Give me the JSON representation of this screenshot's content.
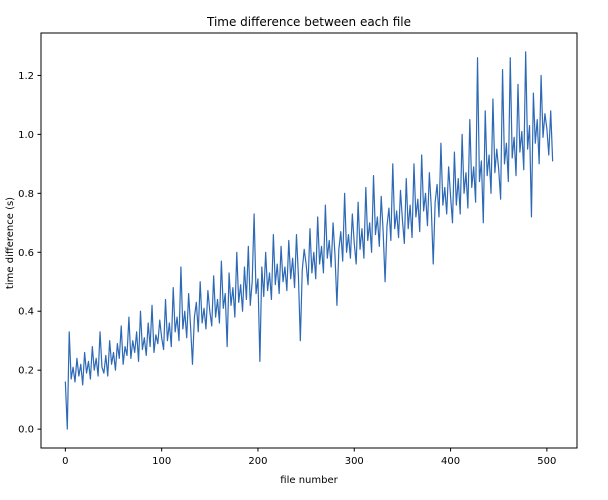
{
  "figure": {
    "background_color": "#ffffff",
    "spine_color": "#000000",
    "text_color": "#000000"
  },
  "chart_data": {
    "type": "line",
    "title": "Time difference between each file",
    "xlabel": "file number",
    "ylabel": "time difference (s)",
    "legend": "none",
    "grid": false,
    "line_color": "#2d69b5",
    "xlim": [
      -25.3,
      531.3
    ],
    "ylim": [
      -0.064,
      1.344
    ],
    "x_ticks": [
      0,
      100,
      200,
      300,
      400,
      500
    ],
    "x_tick_labels": [
      "0",
      "100",
      "200",
      "300",
      "400",
      "500"
    ],
    "y_ticks": [
      0.0,
      0.2,
      0.4,
      0.6,
      0.8,
      1.0,
      1.2
    ],
    "y_tick_labels": [
      "0.0",
      "0.2",
      "0.4",
      "0.6",
      "0.8",
      "1.0",
      "1.2"
    ],
    "x_start": 0,
    "x_step": 2,
    "series": [
      {
        "name": "time difference",
        "values": [
          0.16,
          0.0,
          0.33,
          0.17,
          0.21,
          0.16,
          0.24,
          0.18,
          0.22,
          0.15,
          0.26,
          0.19,
          0.23,
          0.17,
          0.28,
          0.2,
          0.24,
          0.18,
          0.33,
          0.21,
          0.19,
          0.25,
          0.18,
          0.3,
          0.22,
          0.26,
          0.2,
          0.29,
          0.24,
          0.35,
          0.22,
          0.28,
          0.25,
          0.38,
          0.24,
          0.3,
          0.26,
          0.33,
          0.23,
          0.4,
          0.27,
          0.31,
          0.25,
          0.36,
          0.28,
          0.42,
          0.26,
          0.32,
          0.29,
          0.37,
          0.31,
          0.27,
          0.44,
          0.3,
          0.36,
          0.28,
          0.48,
          0.33,
          0.38,
          0.3,
          0.55,
          0.34,
          0.4,
          0.31,
          0.46,
          0.35,
          0.22,
          0.38,
          0.43,
          0.33,
          0.5,
          0.36,
          0.41,
          0.34,
          0.47,
          0.4,
          0.35,
          0.52,
          0.38,
          0.44,
          0.36,
          0.57,
          0.41,
          0.46,
          0.28,
          0.53,
          0.42,
          0.48,
          0.38,
          0.6,
          0.43,
          0.49,
          0.4,
          0.55,
          0.44,
          0.62,
          0.42,
          0.5,
          0.73,
          0.46,
          0.51,
          0.23,
          0.55,
          0.45,
          0.6,
          0.47,
          0.53,
          0.44,
          0.66,
          0.49,
          0.56,
          0.46,
          0.62,
          0.5,
          0.55,
          0.47,
          0.64,
          0.51,
          0.58,
          0.48,
          0.66,
          0.52,
          0.3,
          0.54,
          0.61,
          0.56,
          0.49,
          0.68,
          0.53,
          0.6,
          0.51,
          0.72,
          0.56,
          0.62,
          0.53,
          0.76,
          0.58,
          0.64,
          0.55,
          0.7,
          0.59,
          0.42,
          0.61,
          0.67,
          0.57,
          0.8,
          0.6,
          0.66,
          0.58,
          0.73,
          0.63,
          0.56,
          0.77,
          0.61,
          0.68,
          0.58,
          0.82,
          0.64,
          0.7,
          0.6,
          0.86,
          0.66,
          0.72,
          0.62,
          0.79,
          0.67,
          0.5,
          0.69,
          0.75,
          0.64,
          0.9,
          0.68,
          0.74,
          0.65,
          0.81,
          0.71,
          0.63,
          0.85,
          0.68,
          0.76,
          0.65,
          0.9,
          0.72,
          0.78,
          0.67,
          0.93,
          0.74,
          0.8,
          0.69,
          0.87,
          0.75,
          0.56,
          0.77,
          0.83,
          0.72,
          0.97,
          0.76,
          0.82,
          0.73,
          0.89,
          0.79,
          0.7,
          0.94,
          0.76,
          0.85,
          0.73,
          1.0,
          0.8,
          0.87,
          0.75,
          1.05,
          0.82,
          0.89,
          0.77,
          1.26,
          0.84,
          0.91,
          0.7,
          1.08,
          0.86,
          0.93,
          0.8,
          1.12,
          0.87,
          0.95,
          0.88,
          0.78,
          1.22,
          0.9,
          0.97,
          0.84,
          1.26,
          0.92,
          0.99,
          0.86,
          1.17,
          0.94,
          1.01,
          0.88,
          1.28,
          0.95,
          1.03,
          0.72,
          1.14,
          0.97,
          1.05,
          0.9,
          1.2,
          0.99,
          1.07,
          1.02,
          0.93,
          1.08,
          0.91
        ]
      }
    ]
  }
}
